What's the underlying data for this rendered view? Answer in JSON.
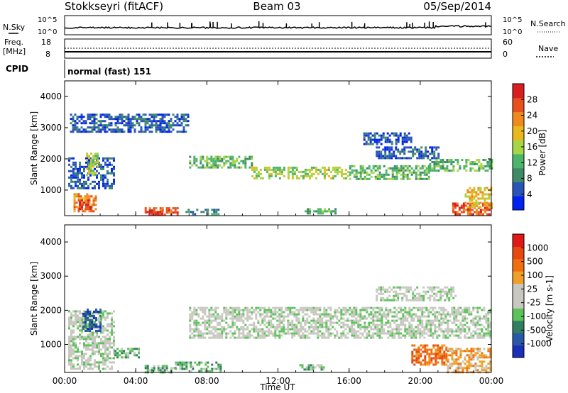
{
  "header": {
    "station": "Stokkseyri (fitACF)",
    "beam": "Beam 03",
    "date": "05/Sep/2014"
  },
  "top_panels": {
    "nsky_label": "N.Sky",
    "nsky_ticks": [
      "10^5",
      "10^0"
    ],
    "nsearch_label": "N.Search",
    "freq_label_1": "Freq.",
    "freq_label_2": "[MHz]",
    "freq_ticks": [
      "18",
      "8"
    ],
    "nave_ticks": [
      "60",
      "0"
    ],
    "nave_label": "Nave",
    "cpid_label": "CPID",
    "cpid_text": "normal (fast) 151"
  },
  "colors": {
    "power_scale": [
      "#0022ee",
      "#2a55b8",
      "#3f8a66",
      "#4cb56a",
      "#a6d646",
      "#e8b81c",
      "#f08a1e",
      "#e8501e",
      "#d81e1e"
    ],
    "velocity_scale": [
      "#1a2eb8",
      "#2a58a8",
      "#327e60",
      "#5cc25a",
      "#c8c8c0",
      "#c8c8c0",
      "#f0a028",
      "#f07010",
      "#e84810",
      "#e01818"
    ],
    "velocity_ground": "#c8c8c0"
  },
  "chart_data": [
    {
      "type": "heatmap",
      "panel": "power",
      "xlabel": "Time UT",
      "ylabel": "Slant Range [km]",
      "x_ticks": [
        "00:00",
        "04:00",
        "08:00",
        "12:00",
        "16:00",
        "20:00",
        "00:00"
      ],
      "x_range_hours": [
        0,
        24
      ],
      "y_ticks": [
        1000,
        2000,
        3000,
        4000
      ],
      "ylim": [
        180,
        4500
      ],
      "colorbar": {
        "label": "Power [dB]",
        "ticks": [
          4,
          8,
          12,
          16,
          20,
          24,
          28
        ],
        "range": [
          0,
          32
        ]
      },
      "regions": [
        {
          "t0": 0.2,
          "t1": 2.8,
          "r0": 1050,
          "r1": 2050,
          "level": 1
        },
        {
          "t0": 0.5,
          "t1": 1.8,
          "r0": 300,
          "r1": 900,
          "level": 6
        },
        {
          "t0": 0.8,
          "t1": 1.5,
          "r0": 400,
          "r1": 700,
          "level": 8
        },
        {
          "t0": 1.2,
          "t1": 1.9,
          "r0": 1500,
          "r1": 2200,
          "level": 4
        },
        {
          "t0": 4.5,
          "t1": 6.3,
          "r0": 180,
          "r1": 450,
          "level": 7
        },
        {
          "t0": 4.6,
          "t1": 5.6,
          "r0": 200,
          "r1": 330,
          "level": 8
        },
        {
          "t0": 6.8,
          "t1": 8.6,
          "r0": 200,
          "r1": 400,
          "level": 2
        },
        {
          "t0": 7.0,
          "t1": 10.5,
          "r0": 1700,
          "r1": 2100,
          "level": 3
        },
        {
          "t0": 10.5,
          "t1": 16.0,
          "r0": 1400,
          "r1": 1750,
          "level": 4
        },
        {
          "t0": 16.0,
          "t1": 20.5,
          "r0": 1350,
          "r1": 1800,
          "level": 3
        },
        {
          "t0": 20.5,
          "t1": 24.0,
          "r0": 1600,
          "r1": 2000,
          "level": 3
        },
        {
          "t0": 17.5,
          "t1": 21.0,
          "r0": 2050,
          "r1": 2400,
          "level": 1
        },
        {
          "t0": 16.8,
          "t1": 19.5,
          "r0": 2500,
          "r1": 2850,
          "level": 1
        },
        {
          "t0": 13.5,
          "t1": 15.2,
          "r0": 220,
          "r1": 420,
          "level": 3
        },
        {
          "t0": 21.8,
          "t1": 24.0,
          "r0": 200,
          "r1": 600,
          "level": 7
        },
        {
          "t0": 22.5,
          "t1": 24.0,
          "r0": 450,
          "r1": 1100,
          "level": 5
        },
        {
          "t0": 0.3,
          "t1": 7.0,
          "r0": 2900,
          "r1": 3450,
          "level": 1
        }
      ]
    },
    {
      "type": "heatmap",
      "panel": "velocity",
      "xlabel": "Time UT",
      "ylabel": "Slant Range [km]",
      "x_ticks": [
        "00:00",
        "04:00",
        "08:00",
        "12:00",
        "16:00",
        "20:00",
        "00:00"
      ],
      "x_range_hours": [
        0,
        24
      ],
      "y_ticks": [
        1000,
        2000,
        3000,
        4000
      ],
      "ylim": [
        180,
        4500
      ],
      "colorbar": {
        "label": "Velocity [m s-1]",
        "ticks": [
          "1000",
          "500",
          "100",
          "25",
          "-25",
          "-100",
          "-500",
          "-1000"
        ]
      },
      "regions": [
        {
          "t0": 0.2,
          "t1": 2.8,
          "r0": 300,
          "r1": 2000,
          "level": 4
        },
        {
          "t0": 1.0,
          "t1": 2.0,
          "r0": 1400,
          "r1": 2050,
          "level": 1
        },
        {
          "t0": 2.8,
          "t1": 4.2,
          "r0": 650,
          "r1": 900,
          "level": 3
        },
        {
          "t0": 4.5,
          "t1": 6.2,
          "r0": 200,
          "r1": 400,
          "level": 3
        },
        {
          "t0": 6.2,
          "t1": 8.8,
          "r0": 250,
          "r1": 500,
          "level": 3
        },
        {
          "t0": 7.0,
          "t1": 24.0,
          "r0": 1200,
          "r1": 2100,
          "level": 4
        },
        {
          "t0": 13.2,
          "t1": 14.6,
          "r0": 250,
          "r1": 420,
          "level": 3
        },
        {
          "t0": 17.5,
          "t1": 22.0,
          "r0": 2300,
          "r1": 2700,
          "level": 4
        },
        {
          "t0": 19.5,
          "t1": 21.5,
          "r0": 400,
          "r1": 1000,
          "level": 7
        },
        {
          "t0": 21.5,
          "t1": 24.0,
          "r0": 200,
          "r1": 900,
          "level": 6
        }
      ]
    }
  ]
}
